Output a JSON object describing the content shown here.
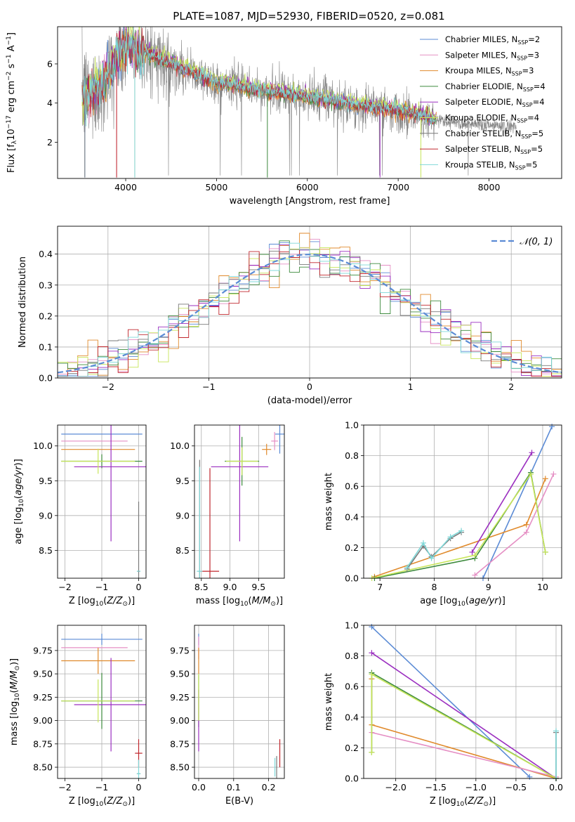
{
  "figure": {
    "title": "PLATE=1087, MJD=52930, FIBERID=0520, z=0.081",
    "colors": {
      "c1": "#5b8bd5",
      "c2": "#e58fc4",
      "c3": "#e08a2c",
      "c4": "#3d8a3d",
      "c5": "#9b2fc0",
      "c6": "#c7e55a",
      "c7": "#7a7a7a",
      "c8": "#c0272d",
      "c9": "#7fd8d8",
      "data": "#808080"
    },
    "legend": [
      {
        "color": "c1",
        "text": "Chabrier MILES, N",
        "sub": "SSP",
        "tail": "=2"
      },
      {
        "color": "c2",
        "text": "Salpeter MILES, N",
        "sub": "SSP",
        "tail": "=3"
      },
      {
        "color": "c3",
        "text": "Kroupa MILES, N",
        "sub": "SSP",
        "tail": "=3"
      },
      {
        "color": "c4",
        "text": "Chabrier ELODIE, N",
        "sub": "SSP",
        "tail": "=4"
      },
      {
        "color": "c5",
        "text": "Salpeter ELODIE, N",
        "sub": "SSP",
        "tail": "=4"
      },
      {
        "color": "c6",
        "text": "Kroupa ELODIE, N",
        "sub": "SSP",
        "tail": "=4"
      },
      {
        "color": "c7",
        "text": "Chabrier STELIB, N",
        "sub": "SSP",
        "tail": "=5"
      },
      {
        "color": "c8",
        "text": "Salpeter STELIB, N",
        "sub": "SSP",
        "tail": "=5"
      },
      {
        "color": "c9",
        "text": "Kroupa STELIB, N",
        "sub": "SSP",
        "tail": "=5"
      }
    ]
  },
  "chart_data": [
    {
      "id": "spectrum",
      "type": "line",
      "xlabel": "wavelength [Angstrom, rest frame]",
      "ylabel": "Flux [f",
      "xlim": [
        3250,
        8800
      ],
      "ylim": [
        0.15,
        7.9
      ],
      "xticks": [
        4000,
        5000,
        6000,
        7000,
        8000
      ],
      "yticks": [
        2,
        4,
        6
      ],
      "continuum": [
        [
          3520,
          4.3
        ],
        [
          3600,
          4.4
        ],
        [
          3700,
          4.8
        ],
        [
          3800,
          5.4
        ],
        [
          3900,
          6.3
        ],
        [
          4000,
          6.9
        ],
        [
          4100,
          6.8
        ],
        [
          4200,
          6.6
        ],
        [
          4400,
          6.2
        ],
        [
          4600,
          5.8
        ],
        [
          4800,
          5.4
        ],
        [
          5000,
          5.0
        ],
        [
          5200,
          4.9
        ],
        [
          5500,
          4.6
        ],
        [
          6000,
          4.3
        ],
        [
          6500,
          3.9
        ],
        [
          7000,
          3.6
        ],
        [
          7300,
          3.3
        ],
        [
          7420,
          3.1
        ]
      ],
      "data_range": [
        3520,
        8300
      ],
      "grid": false
    },
    {
      "id": "residuals",
      "type": "line",
      "xlabel": "(data-model)/error",
      "ylabel": "Normed distribution",
      "xlim": [
        -2.5,
        2.5
      ],
      "ylim": [
        0.0,
        0.49
      ],
      "xticks": [
        -2,
        -1,
        0,
        1,
        2
      ],
      "yticks": [
        0.0,
        0.1,
        0.2,
        0.3,
        0.4
      ],
      "legend": "upper-right",
      "legend_label": "𝒩(0, 1)",
      "grid": true
    },
    {
      "id": "age-vs-Z",
      "type": "scatter",
      "xlabel": "Z [log",
      "ylabel": "age  [log",
      "xlim": [
        -2.2,
        0.2
      ],
      "ylim": [
        8.1,
        10.3
      ],
      "xticks": [
        -2,
        -1,
        0
      ],
      "yticks": [
        8.5,
        9.0,
        9.5,
        10.0
      ],
      "points": [
        {
          "c": "c1",
          "x": -1.0,
          "xe": 1.1,
          "y": 10.17,
          "ye": 0.0
        },
        {
          "c": "c2",
          "x": -1.2,
          "xe": 0.9,
          "y": 10.07,
          "ye": 0.0
        },
        {
          "c": "c3",
          "x": -1.1,
          "xe": 1.0,
          "y": 9.95,
          "ye": 0.0
        },
        {
          "c": "c4",
          "x": -1.0,
          "xe": 1.1,
          "y": 9.78,
          "ye": 0.1
        },
        {
          "c": "c5",
          "x": -0.75,
          "xe": 1.0,
          "y": 9.7,
          "ye": 1.07
        },
        {
          "c": "c6",
          "x": -1.1,
          "xe": 1.0,
          "y": 9.78,
          "ye": 0.18
        },
        {
          "c": "c7",
          "x": 0.0,
          "xe": 0.03,
          "y": 8.2,
          "ye": 1.0
        },
        {
          "c": "c8",
          "x": 0.0,
          "xe": 0.03,
          "y": 8.2,
          "ye": 0.0
        },
        {
          "c": "c9",
          "x": 0.0,
          "xe": 0.05,
          "y": 8.2,
          "ye": 0.0
        }
      ],
      "grid": true
    },
    {
      "id": "age-vs-mass",
      "type": "scatter",
      "xlabel": "mass [log",
      "ylabel": "",
      "xlim": [
        8.38,
        9.95
      ],
      "ylim": [
        8.1,
        10.3
      ],
      "xticks": [
        8.5,
        9.0,
        9.5
      ],
      "yticks": [
        8.5,
        9.0,
        9.5,
        10.0
      ],
      "points": [
        {
          "c": "c1",
          "x": 9.87,
          "xe": 0.08,
          "y": 10.17,
          "ye": 0.28
        },
        {
          "c": "c2",
          "x": 9.78,
          "xe": 0.06,
          "y": 10.07,
          "ye": 0.13
        },
        {
          "c": "c3",
          "x": 9.64,
          "xe": 0.08,
          "y": 9.95,
          "ye": 0.08
        },
        {
          "c": "c4",
          "x": 9.21,
          "xe": 0.3,
          "y": 9.78,
          "ye": 0.35
        },
        {
          "c": "c5",
          "x": 9.17,
          "xe": 0.5,
          "y": 9.7,
          "ye": 1.07
        },
        {
          "c": "c6",
          "x": 9.21,
          "xe": 0.28,
          "y": 9.78,
          "ye": 0.2
        },
        {
          "c": "c7",
          "x": 8.47,
          "xe": 0.02,
          "y": 8.2,
          "ye": 1.6
        },
        {
          "c": "c8",
          "x": 8.65,
          "xe": 0.16,
          "y": 8.2,
          "ye": 1.48
        },
        {
          "c": "c9",
          "x": 8.47,
          "xe": 0.05,
          "y": 8.2,
          "ye": 1.5
        }
      ],
      "grid": true
    },
    {
      "id": "weight-vs-age",
      "type": "line",
      "xlabel": "age  [log",
      "ylabel": "mass weight",
      "xlim": [
        6.7,
        10.35
      ],
      "ylim": [
        0.0,
        1.0
      ],
      "xticks": [
        7,
        8,
        9,
        10
      ],
      "yticks": [
        0.0,
        0.2,
        0.4,
        0.6,
        0.8,
        1.0
      ],
      "series": [
        {
          "c": "c1",
          "points": [
            [
              8.9,
              0.0
            ],
            [
              10.17,
              0.99
            ]
          ]
        },
        {
          "c": "c3",
          "points": [
            [
              6.9,
              0.01
            ],
            [
              9.7,
              0.35
            ],
            [
              10.05,
              0.65
            ]
          ]
        },
        {
          "c": "c2",
          "points": [
            [
              8.75,
              0.02
            ],
            [
              9.7,
              0.3
            ],
            [
              10.2,
              0.68
            ]
          ]
        },
        {
          "c": "c4",
          "points": [
            [
              6.9,
              0.0
            ],
            [
              8.75,
              0.13
            ],
            [
              9.78,
              0.69
            ],
            [
              10.05,
              0.17
            ]
          ]
        },
        {
          "c": "c6",
          "points": [
            [
              6.85,
              0.0
            ],
            [
              8.75,
              0.15
            ],
            [
              9.78,
              0.68
            ],
            [
              10.05,
              0.17
            ]
          ]
        },
        {
          "c": "c5",
          "points": [
            [
              8.7,
              0.17
            ],
            [
              9.8,
              0.82
            ]
          ]
        },
        {
          "c": "c7",
          "points": [
            [
              7.5,
              0.06
            ],
            [
              7.8,
              0.21
            ],
            [
              7.95,
              0.14
            ],
            [
              8.3,
              0.26
            ],
            [
              8.5,
              0.3
            ]
          ]
        },
        {
          "c": "c9",
          "points": [
            [
              7.5,
              0.07
            ],
            [
              7.8,
              0.23
            ],
            [
              7.95,
              0.13
            ],
            [
              8.3,
              0.27
            ],
            [
              8.5,
              0.31
            ]
          ]
        }
      ],
      "grid": true
    },
    {
      "id": "mass-vs-Z",
      "type": "scatter",
      "xlabel": "Z [log",
      "ylabel": "mass [log",
      "xlim": [
        -2.2,
        0.2
      ],
      "ylim": [
        8.38,
        10.02
      ],
      "xticks": [
        -2,
        -1,
        0
      ],
      "yticks": [
        8.5,
        8.75,
        9.0,
        9.25,
        9.5,
        9.75
      ],
      "points": [
        {
          "c": "c1",
          "x": -1.0,
          "xe": 1.1,
          "y": 9.87,
          "ye": 0.06
        },
        {
          "c": "c2",
          "x": -1.2,
          "xe": 0.9,
          "y": 9.78,
          "ye": 0.0
        },
        {
          "c": "c3",
          "x": -1.1,
          "xe": 1.0,
          "y": 9.64,
          "ye": 0.14
        },
        {
          "c": "c4",
          "x": -1.0,
          "xe": 1.1,
          "y": 9.21,
          "ye": 0.3
        },
        {
          "c": "c5",
          "x": -0.75,
          "xe": 1.0,
          "y": 9.17,
          "ye": 0.5
        },
        {
          "c": "c6",
          "x": -1.1,
          "xe": 1.0,
          "y": 9.21,
          "ye": 0.23
        },
        {
          "c": "c7",
          "x": 0.0,
          "xe": 0.05,
          "y": 8.43,
          "ye": 0.0
        },
        {
          "c": "c8",
          "x": 0.0,
          "xe": 0.1,
          "y": 8.65,
          "ye": 0.15
        },
        {
          "c": "c9",
          "x": 0.0,
          "xe": 0.05,
          "y": 8.43,
          "ye": 0.15
        }
      ],
      "grid": true
    },
    {
      "id": "mass-vs-EBV",
      "type": "scatter",
      "xlabel": "E(B-V)",
      "ylabel": "",
      "xlim": [
        -0.012,
        0.245
      ],
      "ylim": [
        8.38,
        10.02
      ],
      "xticks": [
        0.0,
        0.1,
        0.2
      ],
      "yticks": [
        8.5,
        8.75,
        9.0,
        9.25,
        9.5,
        9.75
      ],
      "points": [
        {
          "c": "c1",
          "x": 0.0,
          "xe": 0.0,
          "y": 9.87,
          "ye": 0.06
        },
        {
          "c": "c2",
          "x": 0.0,
          "xe": 0.0,
          "y": 9.78,
          "ye": 0.12
        },
        {
          "c": "c3",
          "x": 0.0,
          "xe": 0.0,
          "y": 9.64,
          "ye": 0.14
        },
        {
          "c": "c4",
          "x": 0.0,
          "xe": 0.0,
          "y": 9.21,
          "ye": 0.28
        },
        {
          "c": "c5",
          "x": 0.0,
          "xe": 0.0,
          "y": 9.0,
          "ye": 0.33
        },
        {
          "c": "c6",
          "x": 0.0,
          "xe": 0.0,
          "y": 9.25,
          "ye": 0.25
        },
        {
          "c": "c7",
          "x": 0.223,
          "xe": 0.0,
          "y": 8.5,
          "ye": 0.12
        },
        {
          "c": "c8",
          "x": 0.232,
          "xe": 0.0,
          "y": 8.65,
          "ye": 0.15
        },
        {
          "c": "c9",
          "x": 0.218,
          "xe": 0.0,
          "y": 8.5,
          "ye": 0.1
        }
      ],
      "grid": true
    },
    {
      "id": "weight-vs-Z",
      "type": "line",
      "xlabel": "Z [log",
      "ylabel": "mass weight",
      "xlim": [
        -2.4,
        0.07
      ],
      "ylim": [
        0.0,
        1.0
      ],
      "xticks": [
        -2.0,
        -1.5,
        -1.0,
        -0.5,
        0.0
      ],
      "xticklabels": [
        "−2.0",
        "−1.5",
        "−1.0",
        "−0.5",
        "0.0"
      ],
      "yticks": [
        0.0,
        0.2,
        0.4,
        0.6,
        0.8,
        1.0
      ],
      "series": [
        {
          "c": "c1",
          "points": [
            [
              -2.3,
              0.99
            ],
            [
              -0.33,
              0.01
            ]
          ]
        },
        {
          "c": "c5",
          "points": [
            [
              -2.3,
              0.82
            ],
            [
              0.0,
              0.0
            ]
          ]
        },
        {
          "c": "c3",
          "points": [
            [
              -2.3,
              0.65
            ],
            [
              -2.3,
              0.35
            ],
            [
              0.0,
              0.0
            ]
          ]
        },
        {
          "c": "c2",
          "points": [
            [
              -2.3,
              0.3
            ],
            [
              0.0,
              0.01
            ]
          ]
        },
        {
          "c": "c4",
          "points": [
            [
              -2.3,
              0.17
            ],
            [
              -2.3,
              0.69
            ],
            [
              0.0,
              0.0
            ]
          ]
        },
        {
          "c": "c6",
          "points": [
            [
              -2.3,
              0.17
            ],
            [
              -2.3,
              0.68
            ],
            [
              0.0,
              0.0
            ]
          ]
        },
        {
          "c": "c7",
          "points": [
            [
              0.0,
              0.0
            ],
            [
              0.0,
              0.3
            ]
          ]
        },
        {
          "c": "c9",
          "points": [
            [
              0.0,
              0.0
            ],
            [
              0.0,
              0.31
            ]
          ]
        }
      ],
      "grid": true
    }
  ]
}
